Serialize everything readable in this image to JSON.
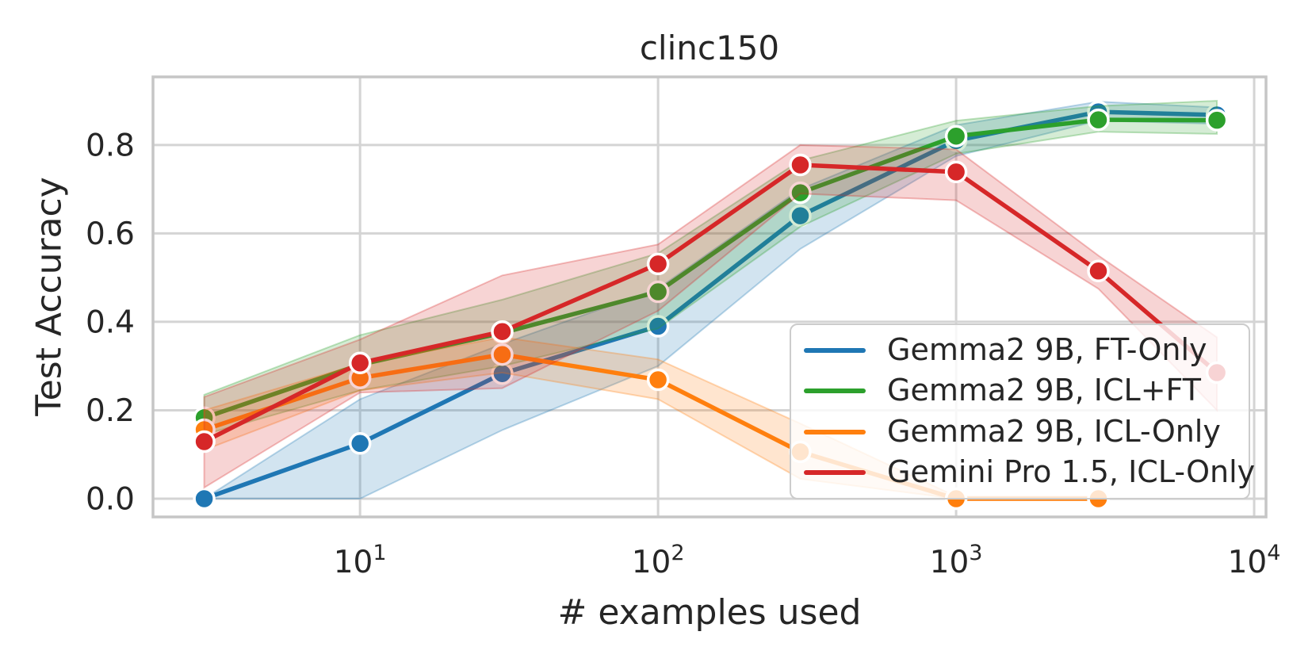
{
  "chart_data": {
    "type": "line",
    "title": "clinc150",
    "xlabel": "# examples used",
    "ylabel": "Test Accuracy",
    "xscale": "log",
    "grid": true,
    "legend_position": "lower right",
    "xlim": [
      2.02,
      10960
    ],
    "ylim": [
      -0.0413,
      0.954
    ],
    "xticks": [
      {
        "value": 10,
        "base": "10",
        "exp": "1"
      },
      {
        "value": 100,
        "base": "10",
        "exp": "2"
      },
      {
        "value": 1000,
        "base": "10",
        "exp": "3"
      },
      {
        "value": 10000,
        "base": "10",
        "exp": "4"
      }
    ],
    "yticks": [
      0.0,
      0.2,
      0.4,
      0.6,
      0.8
    ],
    "ytick_labels": [
      "0.0",
      "0.2",
      "0.4",
      "0.6",
      "0.8"
    ],
    "series": [
      {
        "name": "Gemma2 9B, FT-Only",
        "color": "#1f77b4",
        "x": [
          3,
          10,
          30,
          100,
          300,
          1000,
          3000,
          7500
        ],
        "y": [
          0.0,
          0.125,
          0.283,
          0.39,
          0.64,
          0.81,
          0.875,
          0.868
        ],
        "band_lo": [
          0.0,
          0.0,
          0.155,
          0.3,
          0.565,
          0.775,
          0.855,
          0.848
        ],
        "band_hi": [
          0.0,
          0.225,
          0.35,
          0.475,
          0.7,
          0.845,
          0.898,
          0.885
        ]
      },
      {
        "name": "Gemma2 9B, ICL+FT",
        "color": "#2ca02c",
        "x": [
          3,
          10,
          30,
          100,
          300,
          1000,
          3000,
          7500
        ],
        "y": [
          0.183,
          0.303,
          0.375,
          0.468,
          0.692,
          0.82,
          0.857,
          0.856
        ],
        "band_lo": [
          0.145,
          0.245,
          0.3,
          0.385,
          0.615,
          0.78,
          0.83,
          0.825
        ],
        "band_hi": [
          0.235,
          0.37,
          0.45,
          0.555,
          0.765,
          0.855,
          0.888,
          0.9
        ]
      },
      {
        "name": "Gemma2 9B, ICL-Only",
        "color": "#ff7f0e",
        "x": [
          3,
          10,
          30,
          100,
          300,
          1000,
          3000
        ],
        "y": [
          0.156,
          0.273,
          0.326,
          0.269,
          0.106,
          0.0,
          0.0
        ],
        "band_lo": [
          0.11,
          0.245,
          0.285,
          0.225,
          0.045,
          0.0,
          0.0
        ],
        "band_hi": [
          0.2,
          0.305,
          0.365,
          0.315,
          0.17,
          0.005,
          0.005
        ]
      },
      {
        "name": "Gemini Pro 1.5, ICL-Only",
        "color": "#d62728",
        "x": [
          3,
          10,
          30,
          100,
          300,
          1000,
          3000,
          7500
        ],
        "y": [
          0.129,
          0.307,
          0.378,
          0.531,
          0.755,
          0.739,
          0.515,
          0.285
        ],
        "band_lo": [
          0.025,
          0.24,
          0.25,
          0.425,
          0.69,
          0.675,
          0.475,
          0.2
        ],
        "band_hi": [
          0.23,
          0.36,
          0.505,
          0.575,
          0.8,
          0.79,
          0.55,
          0.365
        ]
      }
    ]
  }
}
